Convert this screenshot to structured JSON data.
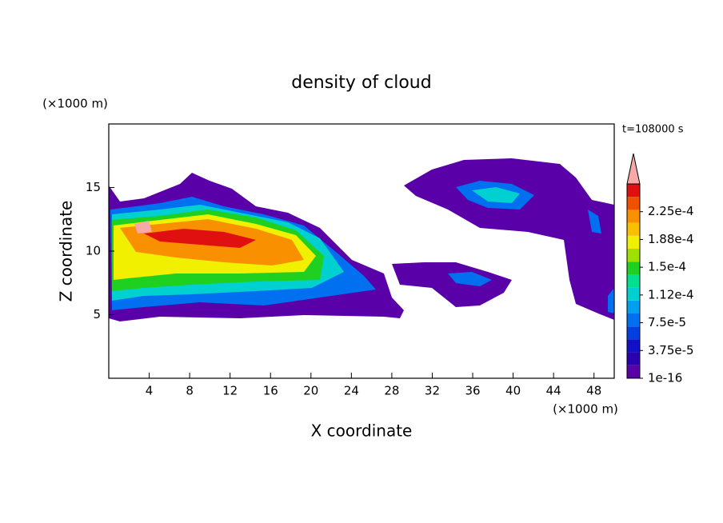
{
  "chart_data": {
    "type": "contour",
    "title": "density of cloud",
    "xlabel": "X coordinate",
    "ylabel": "Z coordinate",
    "xunit": "(×1000 m)",
    "yunit": "(×1000 m)",
    "annotation": "t=108000 s",
    "xlim": [
      0,
      50
    ],
    "xticks": [
      4,
      8,
      12,
      16,
      20,
      24,
      28,
      32,
      36,
      40,
      44,
      48
    ],
    "ylim": [
      0,
      20
    ],
    "yticks": [
      5,
      10,
      15
    ],
    "colorbar": {
      "clim": [
        1e-16,
        0.0002625
      ],
      "colors": [
        "#5a00a8",
        "#2a00b0",
        "#1010c8",
        "#0040e0",
        "#0070f0",
        "#00a0f0",
        "#00d0d0",
        "#00e090",
        "#20d020",
        "#a0e000",
        "#f0f000",
        "#f8c000",
        "#f89000",
        "#f05000",
        "#e01010"
      ],
      "extend_color": "#f8a8a8",
      "ticks": [
        1e-16,
        {
          "value": 3.75e-05,
          "label": "3.75e-5"
        },
        {
          "value": 7.5e-05,
          "label": "7.5e-5"
        },
        {
          "value": 0.0001125,
          "label": "1.12e-4"
        },
        {
          "value": 0.00015,
          "label": "1.5e-4"
        },
        {
          "value": 0.0001875,
          "label": "1.88e-4"
        },
        {
          "value": 0.000225,
          "label": "2.25e-4"
        }
      ]
    }
  }
}
